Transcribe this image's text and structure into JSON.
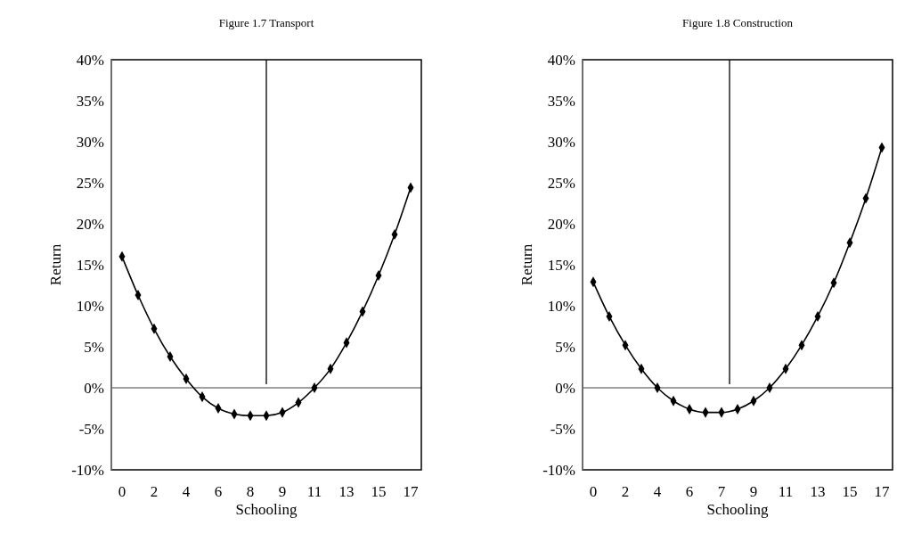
{
  "chart_data": [
    {
      "type": "line",
      "title": "Figure 1.7 Transport",
      "xlabel": "Schooling",
      "ylabel": "Return",
      "categories": [
        "0",
        null,
        "2",
        null,
        "4",
        null,
        "6",
        null,
        "8",
        null,
        "9",
        null,
        "11",
        null,
        "13",
        null,
        "15",
        null,
        "17"
      ],
      "series": [
        {
          "color": "#000000",
          "values": [
            16.0,
            11.3,
            7.2,
            3.8,
            1.1,
            -1.1,
            -2.5,
            -3.2,
            -3.4,
            -3.4,
            -3.0,
            -1.8,
            0.0,
            2.3,
            5.5,
            9.3,
            13.7,
            18.7,
            24.4
          ]
        }
      ],
      "ylim": [
        -10,
        40
      ],
      "yticks": [
        {
          "value": -10,
          "label": "-10%"
        },
        {
          "value": -5,
          "label": "-5%"
        },
        {
          "value": 0,
          "label": "0%"
        },
        {
          "value": 5,
          "label": "5%"
        },
        {
          "value": 10,
          "label": "10%"
        },
        {
          "value": 15,
          "label": "15%"
        },
        {
          "value": 20,
          "label": "20%"
        },
        {
          "value": 25,
          "label": "25%"
        },
        {
          "value": 30,
          "label": "30%"
        },
        {
          "value": 35,
          "label": "35%"
        },
        {
          "value": 40,
          "label": "40%"
        }
      ],
      "marker": "diamond"
    },
    {
      "type": "line",
      "title": "Figure 1.8 Construction",
      "xlabel": "Schooling",
      "ylabel": "Return",
      "categories": [
        "0",
        null,
        "2",
        null,
        "4",
        null,
        "6",
        null,
        "7",
        null,
        "9",
        null,
        "11",
        null,
        "13",
        null,
        "15",
        null,
        "17"
      ],
      "series": [
        {
          "color": "#000000",
          "values": [
            12.9,
            8.7,
            5.2,
            2.3,
            0.0,
            -1.6,
            -2.6,
            -3.0,
            -3.0,
            -2.6,
            -1.6,
            0.0,
            2.3,
            5.2,
            8.7,
            12.8,
            17.7,
            23.1,
            29.3
          ]
        }
      ],
      "ylim": [
        -10,
        40
      ],
      "yticks": [
        {
          "value": -10,
          "label": "-10%"
        },
        {
          "value": -5,
          "label": "-5%"
        },
        {
          "value": 0,
          "label": "0%"
        },
        {
          "value": 5,
          "label": "5%"
        },
        {
          "value": 10,
          "label": "10%"
        },
        {
          "value": 15,
          "label": "15%"
        },
        {
          "value": 20,
          "label": "20%"
        },
        {
          "value": 25,
          "label": "25%"
        },
        {
          "value": 30,
          "label": "30%"
        },
        {
          "value": 35,
          "label": "35%"
        },
        {
          "value": 40,
          "label": "40%"
        }
      ],
      "marker": "diamond"
    }
  ]
}
